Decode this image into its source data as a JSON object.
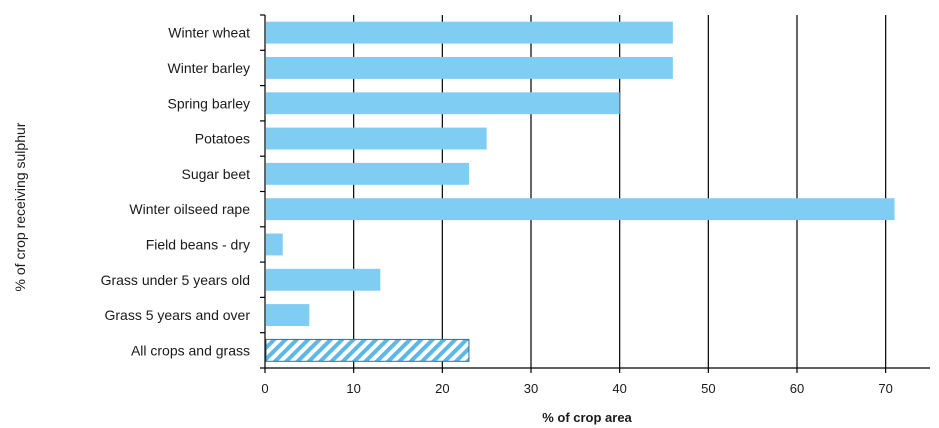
{
  "chart_data": {
    "type": "bar",
    "orientation": "horizontal",
    "categories": [
      "Winter wheat",
      "Winter barley",
      "Spring barley",
      "Potatoes",
      "Sugar beet",
      "Winter oilseed rape",
      "Field beans - dry",
      "Grass under 5 years old",
      "Grass 5 years and over",
      "All crops and grass"
    ],
    "values": [
      46,
      46,
      40,
      25,
      23,
      71,
      2,
      13,
      5,
      23
    ],
    "hatched_category": "All crops and grass",
    "xlabel": "% of crop area",
    "ylabel": "% of crop receiving sulphur",
    "xlim": [
      0,
      75
    ],
    "x_ticks": [
      0,
      10,
      20,
      30,
      40,
      50,
      60,
      70
    ],
    "x_tick_labels": [
      "0",
      "10",
      "20",
      "30",
      "40",
      "50",
      "60",
      "70"
    ],
    "grid": "vertical",
    "colors": {
      "bar": "#7fcdf3",
      "hatch": "#5cb8e8",
      "grid": "#000000",
      "axis": "#000000"
    }
  }
}
